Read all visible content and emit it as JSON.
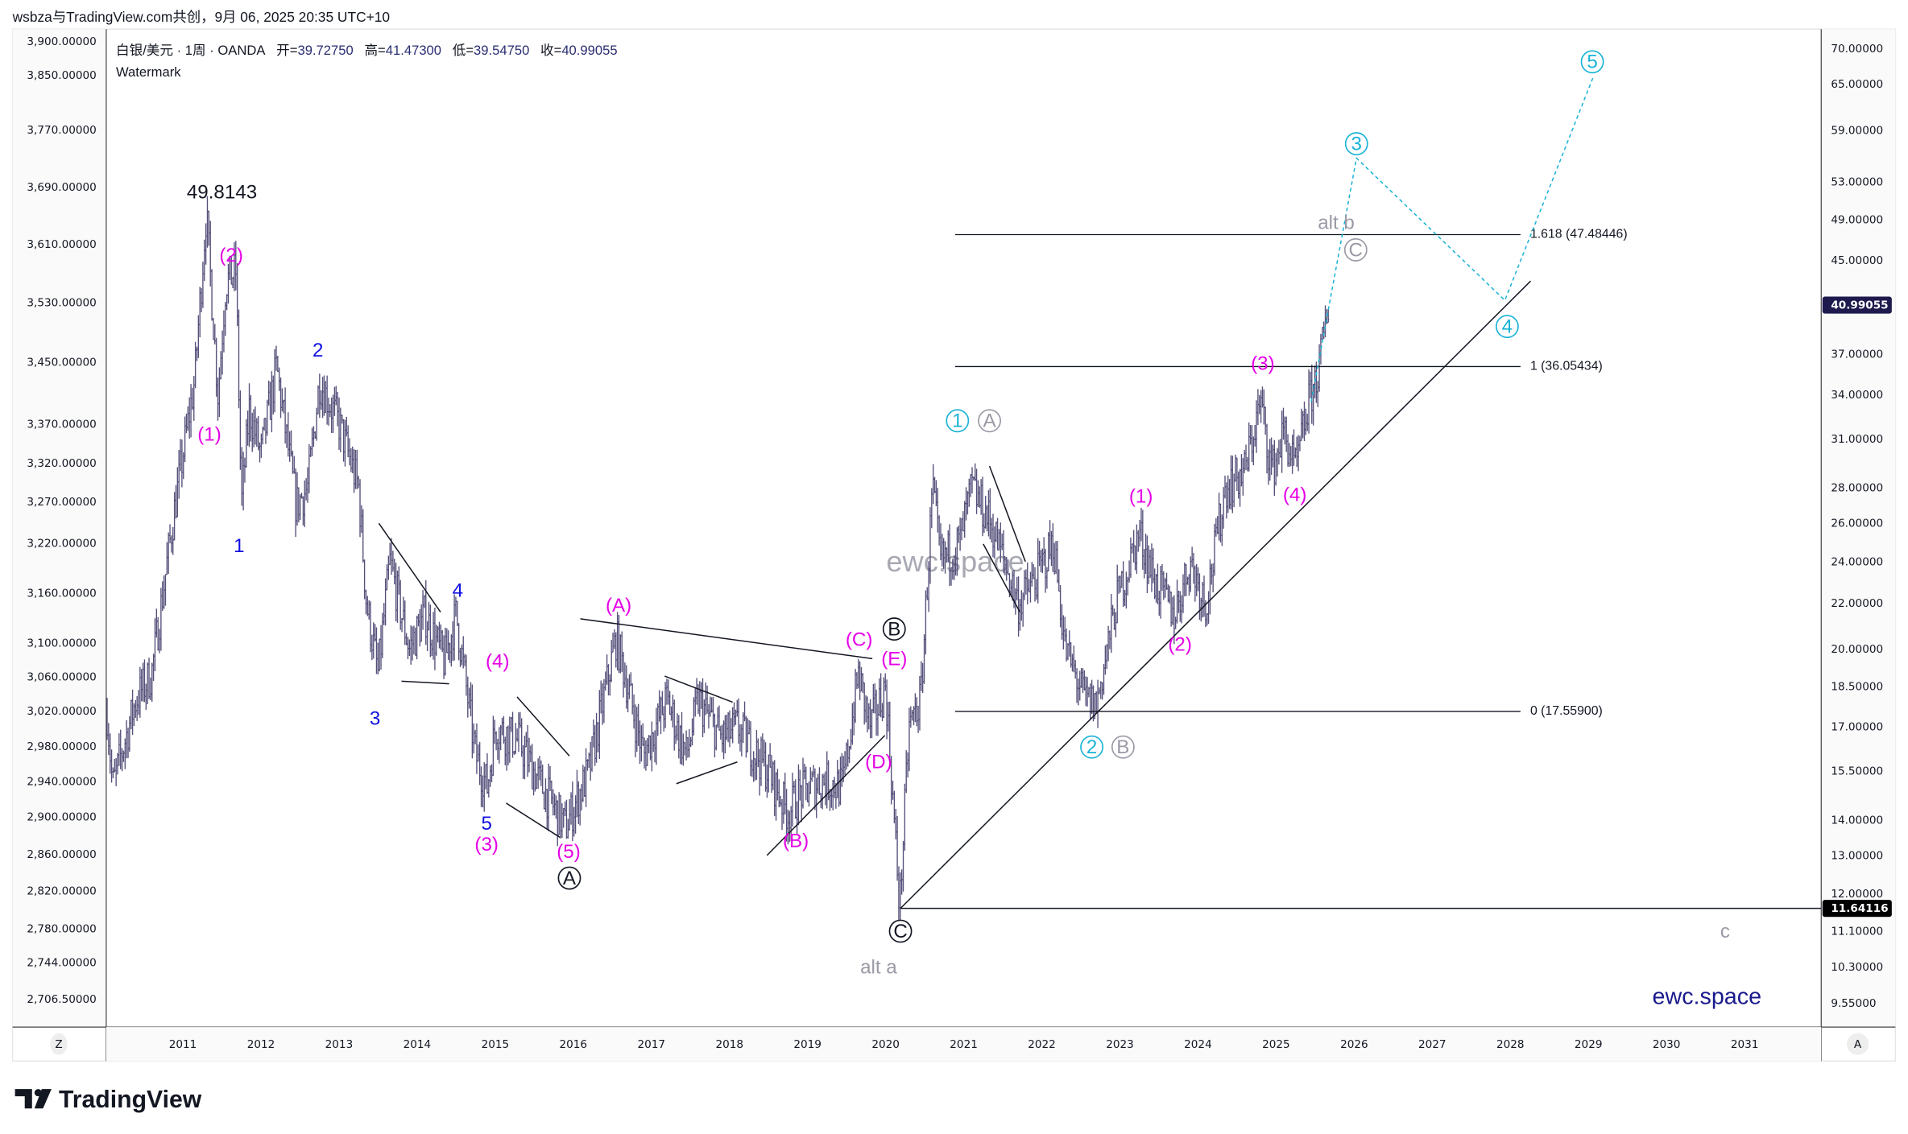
{
  "credit": "wsbza与TradingView.com共创，9月 06, 2025 20:35 UTC+10",
  "legend": {
    "symbol": "白银/美元 · 1周 · OANDA",
    "open_label": "开=",
    "open": "39.72750",
    "high_label": "高=",
    "high": "41.47300",
    "low_label": "低=",
    "low": "39.54750",
    "close_label": "收=",
    "close": "40.99055",
    "watermark": "Watermark"
  },
  "left_axis": [
    "3,900.00000",
    "3,850.00000",
    "3,770.00000",
    "3,690.00000",
    "3,610.00000",
    "3,530.00000",
    "3,450.00000",
    "3,370.00000",
    "3,320.00000",
    "3,270.00000",
    "3,220.00000",
    "3,160.00000",
    "3,100.00000",
    "3,060.00000",
    "3,020.00000",
    "2,980.00000",
    "2,940.00000",
    "2,900.00000",
    "2,860.00000",
    "2,820.00000",
    "2,780.00000",
    "2,744.00000",
    "2,706.50000"
  ],
  "right_axis": [
    70,
    65,
    59,
    53,
    49,
    45,
    37,
    34,
    31,
    28,
    26,
    24,
    22,
    20,
    18.5,
    17,
    15.5,
    14,
    13,
    12,
    11.1,
    10.3,
    9.55
  ],
  "right_axis_labels": [
    "70.00000",
    "65.00000",
    "59.00000",
    "53.00000",
    "49.00000",
    "45.00000",
    "37.00000",
    "34.00000",
    "31.00000",
    "28.00000",
    "26.00000",
    "24.00000",
    "22.00000",
    "20.00000",
    "18.50000",
    "17.00000",
    "15.50000",
    "14.00000",
    "13.00000",
    "12.00000",
    "11.10000",
    "10.30000",
    "9.55000"
  ],
  "price_tag": {
    "value": 40.99055,
    "label": "40.99055",
    "color": "#1e1a4d"
  },
  "low_tag": {
    "value": 11.64116,
    "label": "11.64116",
    "color": "#000000"
  },
  "time_axis": [
    "2011",
    "2012",
    "2013",
    "2014",
    "2015",
    "2016",
    "2017",
    "2018",
    "2019",
    "2020",
    "2021",
    "2022",
    "2023",
    "2024",
    "2025",
    "2026",
    "2027",
    "2028",
    "2029",
    "2030",
    "2031"
  ],
  "corner_left": "Z",
  "corner_right": "A",
  "logo_text": "TradingView",
  "signature": "ewc.space",
  "colors": {
    "bars": "#54507a",
    "magenta": "#e600e6",
    "blue": "#1010e0",
    "cyan": "#1ab3d6",
    "gray": "#9a9aa6",
    "black": "#131722",
    "navy": "#1a1a8c"
  },
  "chart_data": {
    "type": "line",
    "title": "白银/美元 · 1周 · OANDA",
    "scale": "log",
    "ylim": [
      9.3,
      72
    ],
    "xlim": [
      2010.0,
      2031.9
    ],
    "pivots": [
      [
        2010.03,
        17.5
      ],
      [
        2010.1,
        15
      ],
      [
        2010.4,
        18
      ],
      [
        2010.6,
        19
      ],
      [
        2010.9,
        27
      ],
      [
        2011.15,
        35
      ],
      [
        2011.3,
        49.8143
      ],
      [
        2011.45,
        34
      ],
      [
        2011.55,
        43
      ],
      [
        2011.68,
        44
      ],
      [
        2011.75,
        27
      ],
      [
        2011.85,
        33
      ],
      [
        2012.0,
        30
      ],
      [
        2012.2,
        36
      ],
      [
        2012.45,
        27
      ],
      [
        2012.6,
        28
      ],
      [
        2012.75,
        35
      ],
      [
        2013.0,
        32
      ],
      [
        2013.25,
        28
      ],
      [
        2013.35,
        22
      ],
      [
        2013.5,
        19
      ],
      [
        2013.65,
        24
      ],
      [
        2013.9,
        20
      ],
      [
        2014.1,
        21.5
      ],
      [
        2014.35,
        19.5
      ],
      [
        2014.5,
        21.5
      ],
      [
        2014.75,
        16
      ],
      [
        2014.9,
        15
      ],
      [
        2015.0,
        17
      ],
      [
        2015.3,
        16.5
      ],
      [
        2015.6,
        15
      ],
      [
        2015.9,
        13.8
      ],
      [
        2016.2,
        15.5
      ],
      [
        2016.55,
        20.5
      ],
      [
        2016.9,
        16
      ],
      [
        2017.2,
        18
      ],
      [
        2017.45,
        16
      ],
      [
        2017.6,
        18
      ],
      [
        2017.9,
        16.6
      ],
      [
        2018.1,
        17
      ],
      [
        2018.5,
        15.5
      ],
      [
        2018.75,
        14.2
      ],
      [
        2018.9,
        14.8
      ],
      [
        2019.2,
        15.2
      ],
      [
        2019.45,
        15
      ],
      [
        2019.65,
        19
      ],
      [
        2019.8,
        17
      ],
      [
        2020.0,
        18.5
      ],
      [
        2020.18,
        11.64116
      ],
      [
        2020.3,
        17
      ],
      [
        2020.45,
        18
      ],
      [
        2020.6,
        28
      ],
      [
        2020.7,
        24
      ],
      [
        2020.95,
        25
      ],
      [
        2021.1,
        28
      ],
      [
        2021.35,
        26
      ],
      [
        2021.7,
        22
      ],
      [
        2021.9,
        23
      ],
      [
        2022.15,
        25
      ],
      [
        2022.3,
        20
      ],
      [
        2022.55,
        18
      ],
      [
        2022.7,
        17.8
      ],
      [
        2022.95,
        22
      ],
      [
        2023.25,
        25.5
      ],
      [
        2023.45,
        23
      ],
      [
        2023.7,
        21.5
      ],
      [
        2023.9,
        24
      ],
      [
        2024.1,
        22
      ],
      [
        2024.35,
        28
      ],
      [
        2024.6,
        29
      ],
      [
        2024.8,
        33.5
      ],
      [
        2024.95,
        29
      ],
      [
        2025.1,
        31.5
      ],
      [
        2025.25,
        29
      ],
      [
        2025.4,
        33
      ],
      [
        2025.55,
        36
      ],
      [
        2025.67,
        40.99055
      ]
    ],
    "fib_levels": [
      {
        "ratio_label": "1.618 (47.48446)",
        "price": 47.48446,
        "t0": 2020.89,
        "t1": 2028.13
      },
      {
        "ratio_label": "1 (36.05434)",
        "price": 36.05434,
        "t0": 2020.89,
        "t1": 2028.13
      },
      {
        "ratio_label": "0 (17.55900)",
        "price": 17.559,
        "t0": 2020.89,
        "t1": 2028.13
      }
    ],
    "trendlines": [
      [
        [
          2013.51,
          26.0
        ],
        [
          2014.3,
          21.6
        ]
      ],
      [
        [
          2013.8,
          18.7
        ],
        [
          2014.41,
          18.6
        ]
      ],
      [
        [
          2015.28,
          18.1
        ],
        [
          2015.95,
          16.0
        ]
      ],
      [
        [
          2015.14,
          14.5
        ],
        [
          2015.83,
          13.5
        ]
      ],
      [
        [
          2016.09,
          21.3
        ],
        [
          2019.83,
          19.6
        ]
      ],
      [
        [
          2017.17,
          18.9
        ],
        [
          2018.04,
          17.9
        ]
      ],
      [
        [
          2017.32,
          15.1
        ],
        [
          2018.1,
          15.8
        ]
      ],
      [
        [
          2018.48,
          13.0
        ],
        [
          2019.99,
          16.7
        ]
      ],
      [
        [
          2021.33,
          29.3
        ],
        [
          2021.79,
          24.0
        ]
      ],
      [
        [
          2021.25,
          24.9
        ],
        [
          2021.72,
          21.6
        ]
      ],
      [
        [
          2020.19,
          11.64116
        ],
        [
          2028.26,
          43.1
        ]
      ],
      [
        [
          2020.19,
          11.64116
        ],
        [
          2031.9,
          11.64116
        ]
      ]
    ],
    "projection": [
      [
        2025.45,
        33.5
      ],
      [
        2026.03,
        55.7
      ],
      [
        2027.93,
        41.4
      ],
      [
        2029.07,
        66.2
      ]
    ],
    "annotations": [
      {
        "text": "49.8143",
        "t": 2011.5,
        "p": 51.9,
        "color": "black",
        "circle": false
      },
      {
        "text": "(2)",
        "t": 2011.62,
        "p": 45.5,
        "color": "magenta",
        "circle": false
      },
      {
        "text": "(1)",
        "t": 2011.34,
        "p": 31.3,
        "color": "magenta",
        "circle": false
      },
      {
        "text": "1",
        "t": 2011.72,
        "p": 24.8,
        "color": "blue",
        "circle": false
      },
      {
        "text": "2",
        "t": 2012.73,
        "p": 37.3,
        "color": "blue",
        "circle": false
      },
      {
        "text": "3",
        "t": 2013.46,
        "p": 17.3,
        "color": "blue",
        "circle": false
      },
      {
        "text": "4",
        "t": 2014.52,
        "p": 22.6,
        "color": "blue",
        "circle": false
      },
      {
        "text": "(4)",
        "t": 2015.03,
        "p": 19.5,
        "color": "magenta",
        "circle": false
      },
      {
        "text": "5",
        "t": 2014.89,
        "p": 13.9,
        "color": "blue",
        "circle": false
      },
      {
        "text": "(3)",
        "t": 2014.89,
        "p": 13.3,
        "color": "magenta",
        "circle": false
      },
      {
        "text": "(5)",
        "t": 2015.94,
        "p": 13.1,
        "color": "magenta",
        "circle": false
      },
      {
        "text": "A",
        "t": 2015.95,
        "p": 12.4,
        "color": "black",
        "circle": true
      },
      {
        "text": "(A)",
        "t": 2016.58,
        "p": 21.9,
        "color": "magenta",
        "circle": false
      },
      {
        "text": "(B)",
        "t": 2018.85,
        "p": 13.4,
        "color": "magenta",
        "circle": false
      },
      {
        "text": "(C)",
        "t": 2019.66,
        "p": 20.4,
        "color": "magenta",
        "circle": false
      },
      {
        "text": "B",
        "t": 2020.11,
        "p": 20.85,
        "color": "black",
        "circle": true
      },
      {
        "text": "(E)",
        "t": 2020.11,
        "p": 19.6,
        "color": "magenta",
        "circle": false
      },
      {
        "text": "(D)",
        "t": 2019.91,
        "p": 15.8,
        "color": "magenta",
        "circle": false
      },
      {
        "text": "C",
        "t": 2020.19,
        "p": 11.1,
        "color": "black",
        "circle": true
      },
      {
        "text": "alt  a",
        "t": 2019.91,
        "p": 10.3,
        "color": "gray",
        "circle": false
      },
      {
        "text": "1",
        "t": 2020.92,
        "p": 32.2,
        "color": "cyan",
        "circle": true
      },
      {
        "text": "A",
        "t": 2021.33,
        "p": 32.2,
        "color": "gray",
        "circle": true
      },
      {
        "text": "2",
        "t": 2022.64,
        "p": 16.3,
        "color": "cyan",
        "circle": true
      },
      {
        "text": "B",
        "t": 2023.04,
        "p": 16.3,
        "color": "gray",
        "circle": true
      },
      {
        "text": "(1)",
        "t": 2023.27,
        "p": 27.5,
        "color": "magenta",
        "circle": false
      },
      {
        "text": "(2)",
        "t": 2023.77,
        "p": 20.2,
        "color": "magenta",
        "circle": false
      },
      {
        "text": "(3)",
        "t": 2024.83,
        "p": 36.3,
        "color": "magenta",
        "circle": false
      },
      {
        "text": "(4)",
        "t": 2025.24,
        "p": 27.6,
        "color": "magenta",
        "circle": false
      },
      {
        "text": "3",
        "t": 2026.03,
        "p": 57.4,
        "color": "cyan",
        "circle": true
      },
      {
        "text": "alt b",
        "t": 2025.77,
        "p": 48.7,
        "color": "gray",
        "circle": false
      },
      {
        "text": "C",
        "t": 2026.02,
        "p": 46.0,
        "color": "gray",
        "circle": true
      },
      {
        "text": "4",
        "t": 2027.96,
        "p": 39.2,
        "color": "cyan",
        "circle": true
      },
      {
        "text": "5",
        "t": 2029.05,
        "p": 68.1,
        "color": "cyan",
        "circle": true
      },
      {
        "text": "c",
        "t": 2030.75,
        "p": 11.1,
        "color": "gray",
        "circle": false
      }
    ]
  }
}
